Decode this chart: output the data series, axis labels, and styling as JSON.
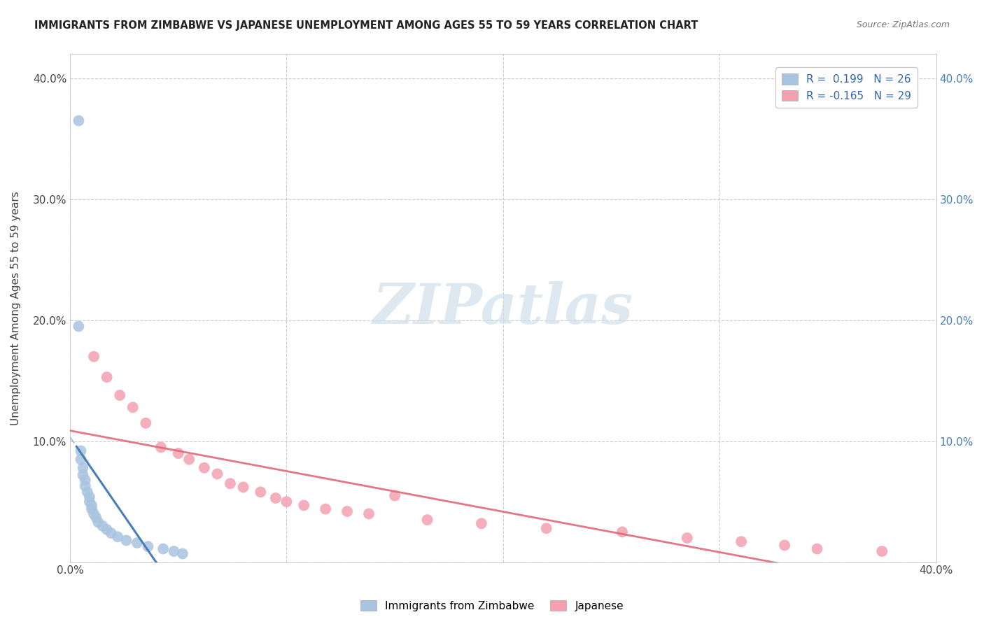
{
  "title": "IMMIGRANTS FROM ZIMBABWE VS JAPANESE UNEMPLOYMENT AMONG AGES 55 TO 59 YEARS CORRELATION CHART",
  "source": "Source: ZipAtlas.com",
  "ylabel": "Unemployment Among Ages 55 to 59 years",
  "xlim": [
    0.0,
    0.4
  ],
  "ylim": [
    0.0,
    0.42
  ],
  "blue_color": "#a8c4e0",
  "pink_color": "#f4a0b0",
  "trend_blue_solid_color": "#4a7fb5",
  "trend_blue_dash_color": "#aabbcc",
  "trend_pink_color": "#e06878",
  "watermark_color": "#ccdde8",
  "legend_r1": "R =  0.199   N = 26",
  "legend_r2": "R = -0.165   N = 29",
  "bottom_legend_1": "Immigrants from Zimbabwe",
  "bottom_legend_2": "Japanese",
  "blue_scatter_x": [
    0.004,
    0.004,
    0.005,
    0.005,
    0.006,
    0.006,
    0.007,
    0.007,
    0.008,
    0.009,
    0.009,
    0.01,
    0.01,
    0.011,
    0.012,
    0.013,
    0.015,
    0.017,
    0.019,
    0.022,
    0.026,
    0.031,
    0.036,
    0.043,
    0.048,
    0.052
  ],
  "blue_scatter_y": [
    0.365,
    0.195,
    0.092,
    0.085,
    0.078,
    0.072,
    0.068,
    0.063,
    0.058,
    0.054,
    0.05,
    0.047,
    0.044,
    0.04,
    0.037,
    0.033,
    0.03,
    0.027,
    0.024,
    0.021,
    0.018,
    0.016,
    0.013,
    0.011,
    0.009,
    0.007
  ],
  "pink_scatter_x": [
    0.011,
    0.017,
    0.023,
    0.029,
    0.035,
    0.042,
    0.05,
    0.055,
    0.062,
    0.068,
    0.074,
    0.08,
    0.088,
    0.095,
    0.1,
    0.108,
    0.118,
    0.128,
    0.138,
    0.15,
    0.165,
    0.19,
    0.22,
    0.255,
    0.285,
    0.31,
    0.33,
    0.345,
    0.375
  ],
  "pink_scatter_y": [
    0.17,
    0.153,
    0.138,
    0.128,
    0.115,
    0.095,
    0.09,
    0.085,
    0.078,
    0.073,
    0.065,
    0.062,
    0.058,
    0.053,
    0.05,
    0.047,
    0.044,
    0.042,
    0.04,
    0.055,
    0.035,
    0.032,
    0.028,
    0.025,
    0.02,
    0.017,
    0.014,
    0.011,
    0.009
  ]
}
